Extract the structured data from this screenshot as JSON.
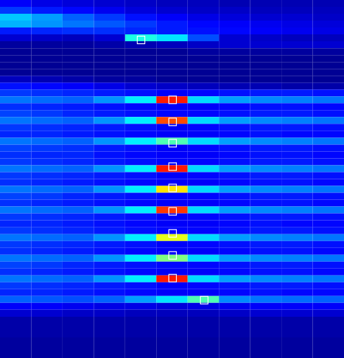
{
  "chart_data": {
    "type": "heatmap",
    "xlim": [
      0,
      11
    ],
    "ylim": [
      0,
      52
    ],
    "tick_labels": false,
    "zlim": [
      0,
      1
    ],
    "marker": "square",
    "cells": [
      [
        0.12,
        0.1,
        0.09,
        0.08,
        0.07,
        0.06,
        0.06,
        0.05,
        0.05,
        0.05,
        0.05
      ],
      [
        0.18,
        0.15,
        0.13,
        0.11,
        0.09,
        0.08,
        0.07,
        0.07,
        0.06,
        0.06,
        0.06
      ],
      [
        0.32,
        0.28,
        0.22,
        0.18,
        0.14,
        0.12,
        0.1,
        0.09,
        0.08,
        0.08,
        0.07
      ],
      [
        0.3,
        0.27,
        0.24,
        0.21,
        0.18,
        0.15,
        0.13,
        0.12,
        0.11,
        0.1,
        0.09
      ],
      [
        0.15,
        0.16,
        0.17,
        0.17,
        0.16,
        0.15,
        0.14,
        0.13,
        0.12,
        0.11,
        0.1
      ],
      [
        0.08,
        0.07,
        0.06,
        0.08,
        0.4,
        0.35,
        0.2,
        0.08,
        0.07,
        0.06,
        0.06
      ],
      [
        0.03,
        0.03,
        0.03,
        0.04,
        0.05,
        0.06,
        0.07,
        0.08,
        0.08,
        0.08,
        0.08
      ],
      [
        0.02,
        0.02,
        0.02,
        0.02,
        0.02,
        0.02,
        0.03,
        0.03,
        0.03,
        0.03,
        0.03
      ],
      [
        0.02,
        0.02,
        0.02,
        0.02,
        0.02,
        0.02,
        0.02,
        0.02,
        0.02,
        0.02,
        0.02
      ],
      [
        0.02,
        0.02,
        0.02,
        0.02,
        0.02,
        0.02,
        0.02,
        0.02,
        0.02,
        0.02,
        0.02
      ],
      [
        0.02,
        0.02,
        0.02,
        0.02,
        0.02,
        0.02,
        0.02,
        0.02,
        0.02,
        0.02,
        0.02
      ],
      [
        0.06,
        0.05,
        0.04,
        0.03,
        0.03,
        0.02,
        0.02,
        0.02,
        0.02,
        0.02,
        0.02
      ],
      [
        0.14,
        0.13,
        0.12,
        0.1,
        0.08,
        0.07,
        0.06,
        0.05,
        0.05,
        0.04,
        0.04
      ],
      [
        0.18,
        0.17,
        0.16,
        0.15,
        0.14,
        0.12,
        0.13,
        0.14,
        0.15,
        0.15,
        0.14
      ],
      [
        0.24,
        0.23,
        0.22,
        0.27,
        0.36,
        0.85,
        0.34,
        0.28,
        0.26,
        0.25,
        0.24
      ],
      [
        0.17,
        0.16,
        0.15,
        0.14,
        0.13,
        0.12,
        0.12,
        0.13,
        0.14,
        0.14,
        0.13
      ],
      [
        0.19,
        0.18,
        0.16,
        0.15,
        0.14,
        0.13,
        0.13,
        0.14,
        0.15,
        0.15,
        0.14
      ],
      [
        0.24,
        0.23,
        0.22,
        0.27,
        0.36,
        0.8,
        0.34,
        0.28,
        0.26,
        0.25,
        0.24
      ],
      [
        0.18,
        0.17,
        0.16,
        0.15,
        0.14,
        0.12,
        0.13,
        0.14,
        0.15,
        0.15,
        0.14
      ],
      [
        0.16,
        0.16,
        0.15,
        0.14,
        0.13,
        0.12,
        0.12,
        0.13,
        0.14,
        0.13,
        0.13
      ],
      [
        0.24,
        0.23,
        0.22,
        0.27,
        0.36,
        0.45,
        0.34,
        0.28,
        0.26,
        0.25,
        0.24
      ],
      [
        0.19,
        0.18,
        0.17,
        0.15,
        0.14,
        0.12,
        0.13,
        0.14,
        0.15,
        0.15,
        0.14
      ],
      [
        0.17,
        0.16,
        0.16,
        0.14,
        0.13,
        0.12,
        0.12,
        0.13,
        0.14,
        0.14,
        0.13
      ],
      [
        0.18,
        0.17,
        0.16,
        0.15,
        0.14,
        0.13,
        0.13,
        0.14,
        0.15,
        0.15,
        0.14
      ],
      [
        0.24,
        0.23,
        0.22,
        0.27,
        0.36,
        0.85,
        0.34,
        0.28,
        0.26,
        0.25,
        0.24
      ],
      [
        0.18,
        0.17,
        0.16,
        0.15,
        0.14,
        0.12,
        0.13,
        0.14,
        0.15,
        0.15,
        0.14
      ],
      [
        0.17,
        0.16,
        0.15,
        0.14,
        0.13,
        0.12,
        0.12,
        0.13,
        0.14,
        0.14,
        0.13
      ],
      [
        0.24,
        0.23,
        0.22,
        0.27,
        0.36,
        0.65,
        0.34,
        0.28,
        0.26,
        0.25,
        0.24
      ],
      [
        0.19,
        0.18,
        0.16,
        0.15,
        0.14,
        0.13,
        0.13,
        0.14,
        0.15,
        0.15,
        0.14
      ],
      [
        0.17,
        0.16,
        0.15,
        0.14,
        0.13,
        0.12,
        0.12,
        0.13,
        0.14,
        0.14,
        0.13
      ],
      [
        0.24,
        0.23,
        0.22,
        0.27,
        0.36,
        0.82,
        0.34,
        0.28,
        0.26,
        0.25,
        0.24
      ],
      [
        0.18,
        0.17,
        0.16,
        0.15,
        0.14,
        0.12,
        0.13,
        0.14,
        0.15,
        0.15,
        0.14
      ],
      [
        0.16,
        0.16,
        0.15,
        0.14,
        0.13,
        0.12,
        0.12,
        0.13,
        0.14,
        0.13,
        0.13
      ],
      [
        0.18,
        0.17,
        0.16,
        0.15,
        0.14,
        0.13,
        0.13,
        0.14,
        0.15,
        0.15,
        0.14
      ],
      [
        0.24,
        0.23,
        0.22,
        0.27,
        0.36,
        0.6,
        0.34,
        0.28,
        0.26,
        0.25,
        0.24
      ],
      [
        0.18,
        0.17,
        0.16,
        0.15,
        0.14,
        0.12,
        0.13,
        0.14,
        0.15,
        0.15,
        0.14
      ],
      [
        0.17,
        0.16,
        0.15,
        0.14,
        0.13,
        0.12,
        0.12,
        0.13,
        0.14,
        0.14,
        0.13
      ],
      [
        0.24,
        0.23,
        0.22,
        0.27,
        0.36,
        0.5,
        0.34,
        0.28,
        0.26,
        0.25,
        0.24
      ],
      [
        0.19,
        0.18,
        0.16,
        0.15,
        0.14,
        0.13,
        0.13,
        0.14,
        0.15,
        0.15,
        0.14
      ],
      [
        0.17,
        0.16,
        0.15,
        0.14,
        0.13,
        0.12,
        0.12,
        0.13,
        0.14,
        0.14,
        0.13
      ],
      [
        0.24,
        0.23,
        0.22,
        0.27,
        0.36,
        0.85,
        0.34,
        0.28,
        0.26,
        0.25,
        0.24
      ],
      [
        0.18,
        0.17,
        0.16,
        0.15,
        0.14,
        0.12,
        0.13,
        0.14,
        0.15,
        0.15,
        0.14
      ],
      [
        0.16,
        0.16,
        0.15,
        0.14,
        0.13,
        0.12,
        0.12,
        0.13,
        0.14,
        0.13,
        0.13
      ],
      [
        0.22,
        0.21,
        0.2,
        0.22,
        0.28,
        0.35,
        0.45,
        0.26,
        0.24,
        0.23,
        0.22
      ],
      [
        0.12,
        0.12,
        0.11,
        0.1,
        0.1,
        0.09,
        0.1,
        0.11,
        0.12,
        0.12,
        0.12
      ],
      [
        0.08,
        0.08,
        0.07,
        0.07,
        0.06,
        0.06,
        0.06,
        0.07,
        0.08,
        0.08,
        0.08
      ],
      [
        0.04,
        0.04,
        0.04,
        0.04,
        0.04,
        0.04,
        0.04,
        0.04,
        0.04,
        0.04,
        0.04
      ],
      [
        0.04,
        0.04,
        0.04,
        0.04,
        0.04,
        0.04,
        0.04,
        0.04,
        0.04,
        0.04,
        0.04
      ],
      [
        0.04,
        0.04,
        0.04,
        0.04,
        0.04,
        0.04,
        0.04,
        0.04,
        0.04,
        0.04,
        0.04
      ],
      [
        0.03,
        0.03,
        0.03,
        0.03,
        0.03,
        0.03,
        0.03,
        0.03,
        0.03,
        0.03,
        0.03
      ],
      [
        0.03,
        0.03,
        0.03,
        0.03,
        0.03,
        0.03,
        0.03,
        0.03,
        0.03,
        0.03,
        0.03
      ],
      [
        0.03,
        0.03,
        0.03,
        0.03,
        0.03,
        0.03,
        0.03,
        0.03,
        0.03,
        0.03,
        0.03
      ]
    ],
    "peaks": {
      "x": [
        4.51,
        5.52,
        5.52,
        5.52,
        5.52,
        5.52,
        5.52,
        5.52,
        5.52,
        5.52,
        6.53
      ],
      "y": [
        46.2,
        37.5,
        34.3,
        31.2,
        27.8,
        24.7,
        21.3,
        18.1,
        14.9,
        11.6,
        8.4
      ]
    }
  }
}
